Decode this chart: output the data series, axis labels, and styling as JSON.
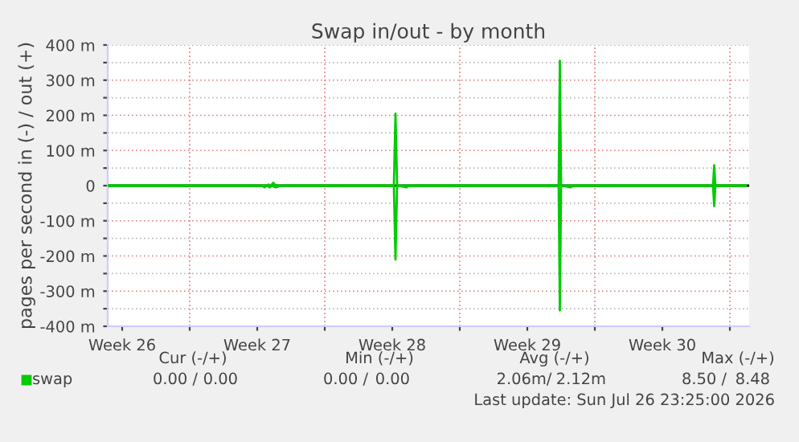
{
  "chart_data": {
    "type": "line",
    "title": "Swap in/out - by month",
    "ylabel": "pages per second in (-) / out (+)",
    "series": [
      {
        "name": "swap",
        "color": "#00cc00",
        "x": [
          "2026-06-24T18:00",
          "2026-07-03T00:00",
          "2026-07-03T02:00",
          "2026-07-03T05:00",
          "2026-07-03T08:00",
          "2026-07-03T11:00",
          "2026-07-09T14:00",
          "2026-07-09T16:00",
          "2026-07-09T18:00",
          "2026-07-18T03:00",
          "2026-07-18T04:30",
          "2026-07-18T06:00",
          "2026-07-26T03:00",
          "2026-07-26T04:30",
          "2026-07-26T06:00",
          "2026-07-27T20:00"
        ],
        "values": [
          0,
          0,
          3,
          0,
          8,
          0,
          0,
          205,
          0,
          0,
          355,
          0,
          0,
          58,
          0,
          0
        ]
      },
      {
        "color": "#00cc00",
        "x": [
          "2026-06-24T18:00",
          "2026-07-02T18:00",
          "2026-07-02T21:00",
          "2026-07-03T00:00",
          "2026-07-03T04:00",
          "2026-07-03T06:00",
          "2026-07-03T11:00",
          "2026-07-03T18:00",
          "2026-07-03T21:00",
          "2026-07-09T14:00",
          "2026-07-09T16:00",
          "2026-07-09T18:00",
          "2026-07-10T06:00",
          "2026-07-10T08:00",
          "2026-07-18T03:00",
          "2026-07-18T04:30",
          "2026-07-18T06:00",
          "2026-07-18T18:00",
          "2026-07-18T21:00",
          "2026-07-26T03:00",
          "2026-07-26T04:30",
          "2026-07-26T06:00",
          "2026-07-27T20:00"
        ],
        "values": [
          0,
          0,
          -5,
          0,
          -5,
          0,
          -5,
          0,
          0,
          0,
          -210,
          0,
          -5,
          0,
          0,
          -355,
          0,
          -5,
          0,
          0,
          -58,
          0,
          0
        ]
      }
    ],
    "xlim": [
      "2026-06-24T18:00",
      "2026-07-28T00:00"
    ],
    "xticks": [
      {
        "value": "2026-06-25T12:00",
        "label": "Week 26"
      },
      {
        "value": "2026-06-29T00:00",
        "label": null
      },
      {
        "value": "2026-07-02T12:00",
        "label": "Week 27"
      },
      {
        "value": "2026-07-06T00:00",
        "label": null
      },
      {
        "value": "2026-07-09T12:00",
        "label": "Week 28"
      },
      {
        "value": "2026-07-13T00:00",
        "label": null
      },
      {
        "value": "2026-07-16T12:00",
        "label": "Week 29"
      },
      {
        "value": "2026-07-20T00:00",
        "label": null
      },
      {
        "value": "2026-07-23T12:00",
        "label": "Week 30"
      },
      {
        "value": "2026-07-27T00:00",
        "label": null
      }
    ],
    "ylim": [
      -400,
      400
    ],
    "yticks": [
      {
        "value": -400,
        "label": "-400 m"
      },
      {
        "value": -350,
        "label": null
      },
      {
        "value": -300,
        "label": "-300 m"
      },
      {
        "value": -250,
        "label": null
      },
      {
        "value": -200,
        "label": "-200 m"
      },
      {
        "value": -150,
        "label": null
      },
      {
        "value": -100,
        "label": "-100 m"
      },
      {
        "value": -50,
        "label": null
      },
      {
        "value": 0,
        "label": "0"
      },
      {
        "value": 50,
        "label": null
      },
      {
        "value": 100,
        "label": "100 m"
      },
      {
        "value": 150,
        "label": null
      },
      {
        "value": 200,
        "label": "200 m"
      },
      {
        "value": 250,
        "label": null
      },
      {
        "value": 300,
        "label": "300 m"
      },
      {
        "value": 350,
        "label": null
      },
      {
        "value": 400,
        "label": "400 m"
      }
    ],
    "ref_lines": [
      {
        "axis": "y",
        "value": 0,
        "color": "#000000"
      }
    ],
    "grid": true,
    "legend": "bottom left",
    "annotations": [
      "Cur (-/+)",
      "Min (-/+)",
      "Avg (-/+)",
      "Max (-/+)",
      "0.00 /",
      "0.00",
      "0.00 /",
      "0.00",
      "2.06m/",
      "2.12m",
      "8.50 /",
      "8.48",
      "Last update: Sun Jul 26 23:25:00 2026"
    ]
  }
}
